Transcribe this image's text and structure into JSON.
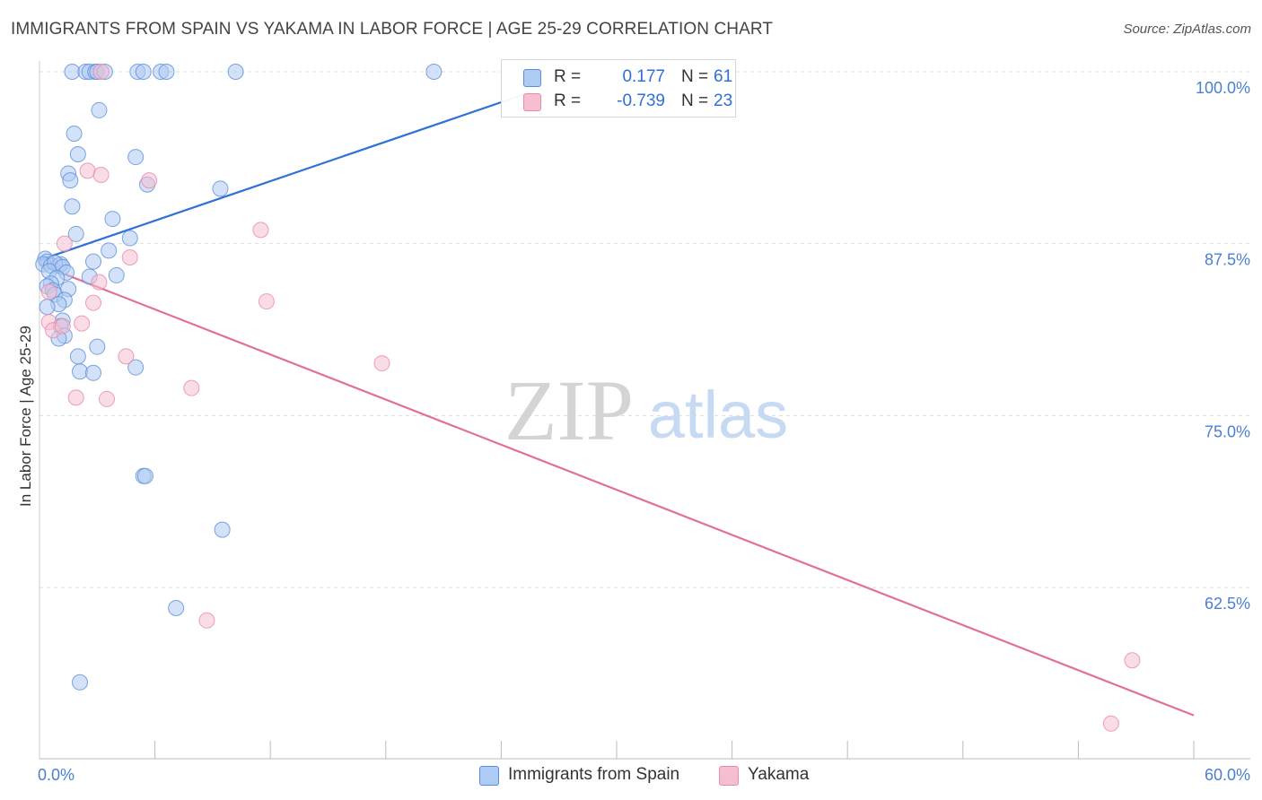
{
  "title": "IMMIGRANTS FROM SPAIN VS YAKAMA IN LABOR FORCE | AGE 25-29 CORRELATION CHART",
  "source": "Source: ZipAtlas.com",
  "watermark": {
    "zip": "ZIP",
    "atlas": "atlas"
  },
  "colors": {
    "spain_fill": "#aecbf3",
    "spain_stroke": "#5b8fd9",
    "spain_line": "#2f72d6",
    "yakama_fill": "#f6bfd1",
    "yakama_stroke": "#e88aa8",
    "yakama_line": "#e0709a",
    "tick": "#4a7fd1",
    "grid": "#dddddd"
  },
  "legend_top": [
    {
      "series": "spain",
      "r_label": "R =",
      "r_value": "0.177",
      "n_label": "N =",
      "n_value": "61"
    },
    {
      "series": "yakama",
      "r_label": "R =",
      "r_value": "-0.739",
      "n_label": "N =",
      "n_value": "23"
    }
  ],
  "legend_bottom": [
    {
      "series": "spain",
      "label": "Immigrants from Spain"
    },
    {
      "series": "yakama",
      "label": "Yakama"
    }
  ],
  "chart_data": {
    "type": "scatter",
    "title": "IMMIGRANTS FROM SPAIN VS YAKAMA IN LABOR FORCE | AGE 25-29 CORRELATION CHART",
    "xlabel": "",
    "ylabel": "In Labor Force | Age 25-29",
    "xlim": [
      0,
      60
    ],
    "ylim": [
      51,
      101.5
    ],
    "x_ticks": [
      {
        "value": 0,
        "label": "0.0%"
      },
      {
        "value": 60,
        "label": "60.0%"
      }
    ],
    "x_minor_ticks": [
      6,
      12,
      18,
      24,
      30,
      36,
      42,
      48,
      54,
      60
    ],
    "y_ticks": [
      {
        "value": 100,
        "label": "100.0%"
      },
      {
        "value": 87.5,
        "label": "87.5%"
      },
      {
        "value": 75,
        "label": "75.0%"
      },
      {
        "value": 62.5,
        "label": "62.5%"
      }
    ],
    "grid": true,
    "legend_position": "top-center",
    "series": [
      {
        "name": "Immigrants from Spain",
        "key": "spain",
        "r": 0.177,
        "n": 61,
        "trend": {
          "x": [
            0,
            25.5
          ],
          "y": [
            86.3,
            98.5
          ]
        },
        "points": [
          [
            1.7,
            100
          ],
          [
            2.4,
            100
          ],
          [
            2.6,
            100
          ],
          [
            2.9,
            100
          ],
          [
            3.0,
            100
          ],
          [
            3.4,
            100
          ],
          [
            5.1,
            100
          ],
          [
            5.4,
            100
          ],
          [
            6.3,
            100
          ],
          [
            6.6,
            100
          ],
          [
            10.2,
            100
          ],
          [
            20.5,
            100
          ],
          [
            3.1,
            97.2
          ],
          [
            1.8,
            95.5
          ],
          [
            2.0,
            94.0
          ],
          [
            5.0,
            93.8
          ],
          [
            1.5,
            92.6
          ],
          [
            1.6,
            92.1
          ],
          [
            5.6,
            91.8
          ],
          [
            9.4,
            91.5
          ],
          [
            1.7,
            90.2
          ],
          [
            3.8,
            89.3
          ],
          [
            1.9,
            88.2
          ],
          [
            4.7,
            87.9
          ],
          [
            3.6,
            87.0
          ],
          [
            0.3,
            86.4
          ],
          [
            0.4,
            86.2
          ],
          [
            0.2,
            86.0
          ],
          [
            0.6,
            85.9
          ],
          [
            1.0,
            85.9
          ],
          [
            1.1,
            86.0
          ],
          [
            2.8,
            86.2
          ],
          [
            0.8,
            86.1
          ],
          [
            1.2,
            85.8
          ],
          [
            0.5,
            85.5
          ],
          [
            1.4,
            85.4
          ],
          [
            2.6,
            85.1
          ],
          [
            4.0,
            85.2
          ],
          [
            0.9,
            85.0
          ],
          [
            0.6,
            84.6
          ],
          [
            0.4,
            84.4
          ],
          [
            0.7,
            84.1
          ],
          [
            1.5,
            84.2
          ],
          [
            0.8,
            83.8
          ],
          [
            1.3,
            83.4
          ],
          [
            1.0,
            83.1
          ],
          [
            0.4,
            82.9
          ],
          [
            1.2,
            81.9
          ],
          [
            1.1,
            81.5
          ],
          [
            1.3,
            80.8
          ],
          [
            1.0,
            80.6
          ],
          [
            3.0,
            80.0
          ],
          [
            2.0,
            79.3
          ],
          [
            5.0,
            78.5
          ],
          [
            2.1,
            78.2
          ],
          [
            2.8,
            78.1
          ],
          [
            5.4,
            70.6
          ],
          [
            5.5,
            70.6
          ],
          [
            9.5,
            66.7
          ],
          [
            7.1,
            61.0
          ],
          [
            2.1,
            55.6
          ]
        ]
      },
      {
        "name": "Yakama",
        "key": "yakama",
        "r": -0.739,
        "n": 23,
        "trend": {
          "x": [
            0,
            60
          ],
          "y": [
            86.0,
            53.2
          ]
        },
        "points": [
          [
            3.2,
            100
          ],
          [
            2.5,
            92.8
          ],
          [
            3.2,
            92.5
          ],
          [
            5.7,
            92.1
          ],
          [
            11.5,
            88.5
          ],
          [
            1.3,
            87.5
          ],
          [
            4.7,
            86.5
          ],
          [
            3.1,
            84.7
          ],
          [
            0.5,
            84.0
          ],
          [
            11.8,
            83.3
          ],
          [
            2.8,
            83.2
          ],
          [
            0.5,
            81.8
          ],
          [
            2.2,
            81.7
          ],
          [
            0.7,
            81.2
          ],
          [
            1.2,
            81.5
          ],
          [
            4.5,
            79.3
          ],
          [
            17.8,
            78.8
          ],
          [
            7.9,
            77.0
          ],
          [
            1.9,
            76.3
          ],
          [
            3.5,
            76.2
          ],
          [
            8.7,
            60.1
          ],
          [
            56.8,
            57.2
          ],
          [
            55.7,
            52.6
          ]
        ]
      }
    ]
  }
}
